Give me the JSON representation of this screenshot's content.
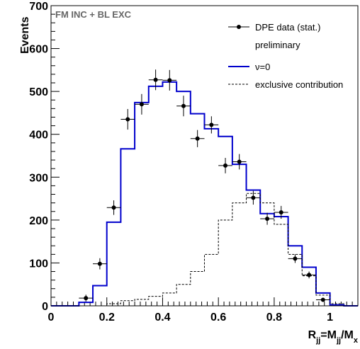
{
  "chart_data": {
    "type": "histogram",
    "annotation": "FM INC + BL EXC",
    "xlabel": {
      "main": "R",
      "sub1": "jj",
      "mid": "=M",
      "sub2": "jj",
      "div": "/M",
      "sub3": "x"
    },
    "ylabel": "Events",
    "xlim": [
      0,
      1.1
    ],
    "ylim": [
      0,
      700
    ],
    "x_ticks": [
      0,
      0.2,
      0.4,
      0.6,
      0.8,
      1
    ],
    "y_ticks": [
      0,
      100,
      200,
      300,
      400,
      500,
      600,
      700
    ],
    "x_tick_labels": [
      "0",
      "0.2",
      "0.4",
      "0.6",
      "0.8",
      "1"
    ],
    "y_tick_labels": [
      "0",
      "100",
      "200",
      "300",
      "400",
      "500",
      "600",
      "700"
    ],
    "bin_edges": [
      0,
      0.05,
      0.1,
      0.15,
      0.2,
      0.25,
      0.3,
      0.35,
      0.4,
      0.45,
      0.5,
      0.55,
      0.6,
      0.65,
      0.7,
      0.75,
      0.8,
      0.85,
      0.9,
      0.95,
      1.0,
      1.05,
      1.1
    ],
    "series": [
      {
        "name": "DPE data (stat.)",
        "name_line2": "preliminary",
        "kind": "points",
        "color": "#000000",
        "x": [
          0.125,
          0.175,
          0.225,
          0.275,
          0.325,
          0.375,
          0.425,
          0.475,
          0.525,
          0.575,
          0.625,
          0.675,
          0.725,
          0.775,
          0.825,
          0.875,
          0.925,
          0.975
        ],
        "y": [
          18,
          98,
          229,
          435,
          470,
          527,
          526,
          466,
          390,
          422,
          327,
          336,
          252,
          203,
          218,
          110,
          72,
          14
        ],
        "yerr": [
          8,
          13,
          17,
          24,
          24,
          24,
          24,
          24,
          20,
          20,
          18,
          18,
          16,
          14,
          15,
          10,
          8,
          3
        ]
      },
      {
        "name": "ν=0",
        "kind": "step",
        "color": "#0000cc",
        "values": [
          0,
          0,
          8,
          47,
          195,
          366,
          474,
          512,
          522,
          500,
          448,
          413,
          395,
          330,
          270,
          215,
          208,
          140,
          90,
          30,
          2,
          0
        ]
      },
      {
        "name": "exclusive contribution",
        "kind": "step-dashed",
        "color": "#000000",
        "values": [
          0,
          0,
          0,
          0,
          5,
          12,
          15,
          22,
          30,
          50,
          80,
          120,
          200,
          240,
          262,
          240,
          190,
          120,
          70,
          25,
          5,
          0
        ]
      }
    ]
  }
}
